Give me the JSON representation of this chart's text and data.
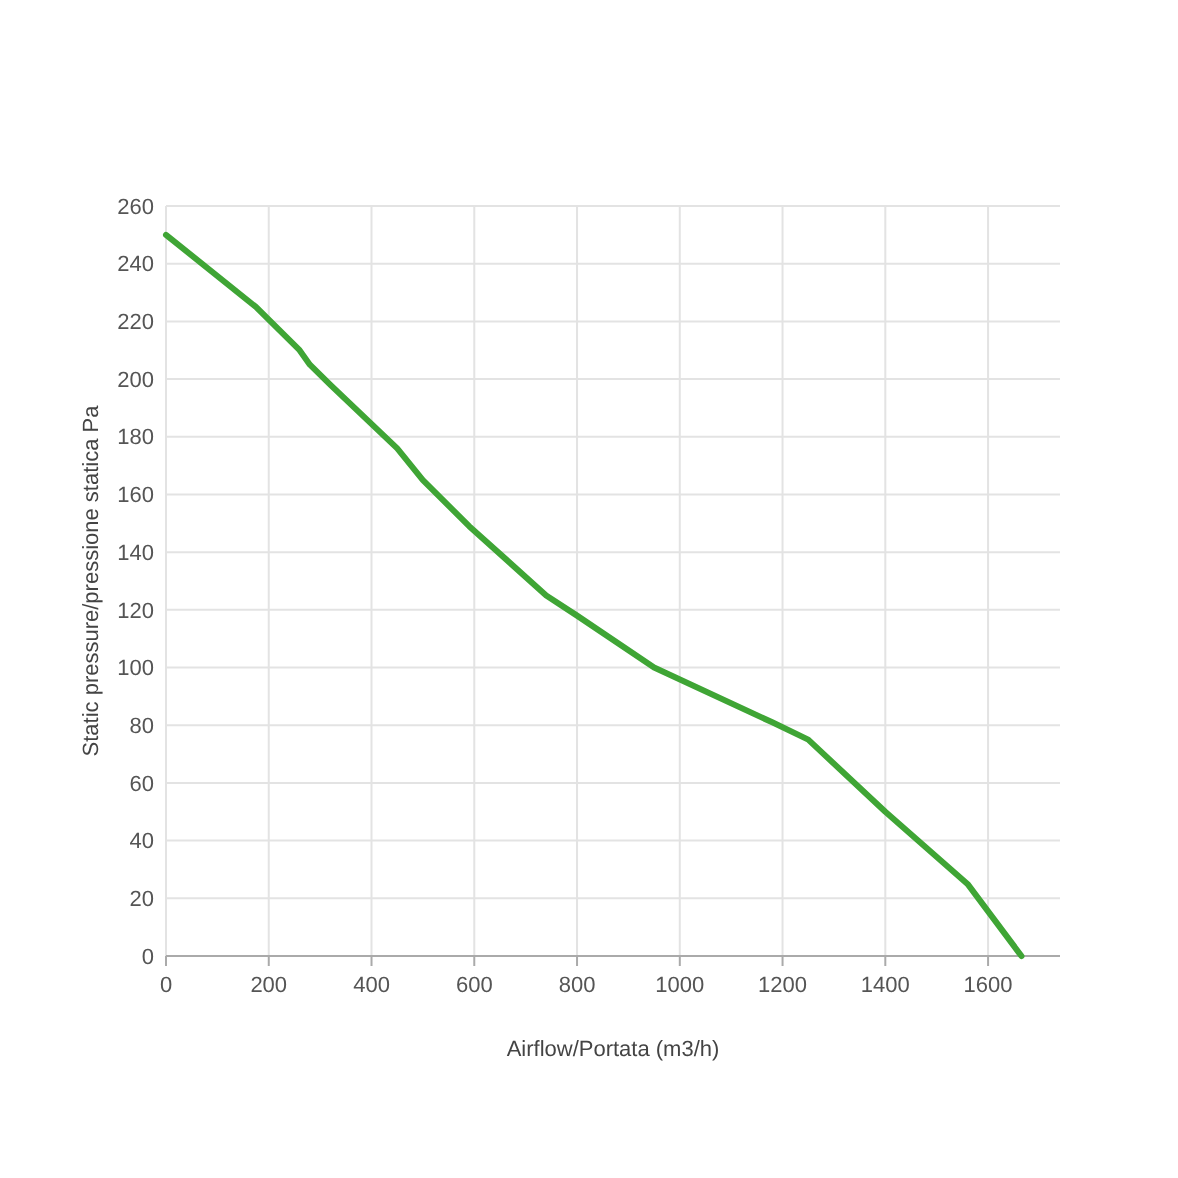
{
  "chart_data": {
    "type": "line",
    "xlabel": "Airflow/Portata (m3/h)",
    "ylabel": "Static pressure/pressione statica Pa",
    "x": [
      0,
      175,
      260,
      280,
      320,
      450,
      500,
      590,
      740,
      800,
      950,
      1180,
      1250,
      1400,
      1560,
      1665
    ],
    "series": [
      {
        "color": "#3fa535",
        "values": [
          250,
          225,
          210,
          205,
          198,
          176,
          165,
          149,
          125,
          118,
          100,
          81,
          75,
          50,
          25,
          0
        ]
      }
    ],
    "xlim": [
      0,
      1740
    ],
    "xticks": [
      0,
      200,
      400,
      600,
      800,
      1000,
      1200,
      1400,
      1600
    ],
    "ylim": [
      0,
      260
    ],
    "yticks": [
      0,
      20,
      40,
      60,
      80,
      100,
      120,
      140,
      160,
      180,
      200,
      220,
      240,
      260
    ],
    "grid": true,
    "marker": "none",
    "line_style": "solid"
  }
}
